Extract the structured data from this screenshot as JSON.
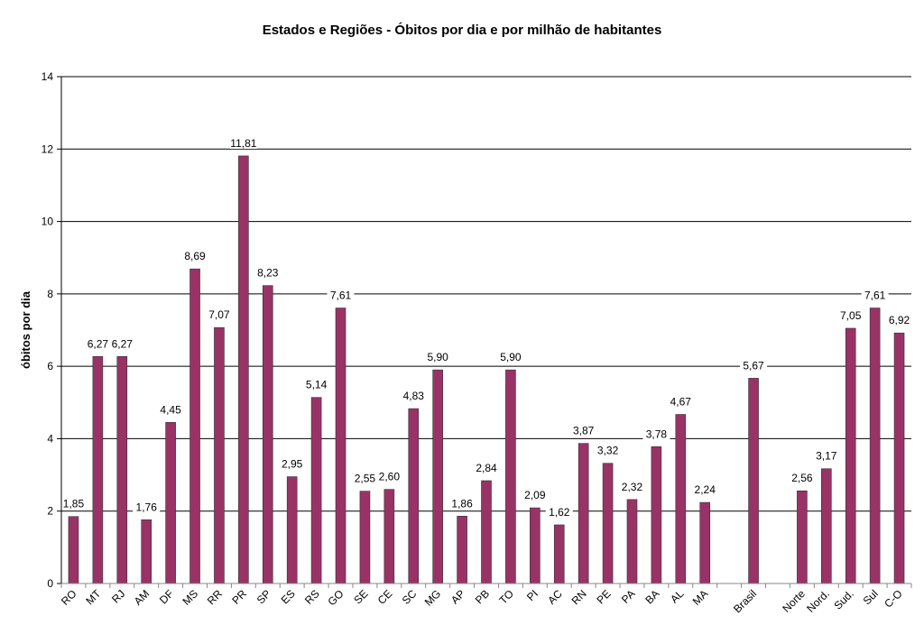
{
  "chart_data": {
    "type": "bar",
    "title": "Estados e Regiões - Óbitos por dia e por milhão de habitantes",
    "xlabel": "",
    "ylabel": "óbitos por dia",
    "ylim": [
      0,
      14
    ],
    "yticks": [
      "0",
      "2",
      "4",
      "6",
      "8",
      "10",
      "12",
      "14"
    ],
    "grid": true,
    "color": "#993366",
    "categories": [
      "RO",
      "MT",
      "RJ",
      "AM",
      "DF",
      "MS",
      "RR",
      "PR",
      "SP",
      "ES",
      "RS",
      "GO",
      "SE",
      "CE",
      "SC",
      "MG",
      "AP",
      "PB",
      "TO",
      "PI",
      "AC",
      "RN",
      "PE",
      "PA",
      "BA",
      "AL",
      "MA",
      "",
      "Brasil",
      "",
      "Norte",
      "Nord.",
      "Sud.",
      "Sul",
      "C-O"
    ],
    "values": [
      1.85,
      6.27,
      6.27,
      1.76,
      4.45,
      8.69,
      7.07,
      11.81,
      8.23,
      2.95,
      5.14,
      7.61,
      2.55,
      2.6,
      4.83,
      5.9,
      1.86,
      2.84,
      5.9,
      2.09,
      1.62,
      3.87,
      3.32,
      2.32,
      3.78,
      4.67,
      2.24,
      null,
      5.67,
      null,
      2.56,
      3.17,
      7.05,
      7.61,
      6.92
    ],
    "data_labels": [
      "1,85",
      "6,27",
      "6,27",
      "1,76",
      "4,45",
      "8,69",
      "7,07",
      "11,81",
      "8,23",
      "2,95",
      "5,14",
      "7,61",
      "2,55",
      "2,60",
      "4,83",
      "5,90",
      "1,86",
      "2,84",
      "5,90",
      "2,09",
      "1,62",
      "3,87",
      "3,32",
      "2,32",
      "3,78",
      "4,67",
      "2,24",
      "",
      "5,67",
      "",
      "2,56",
      "3,17",
      "7,05",
      "7,61",
      "6,92"
    ]
  }
}
